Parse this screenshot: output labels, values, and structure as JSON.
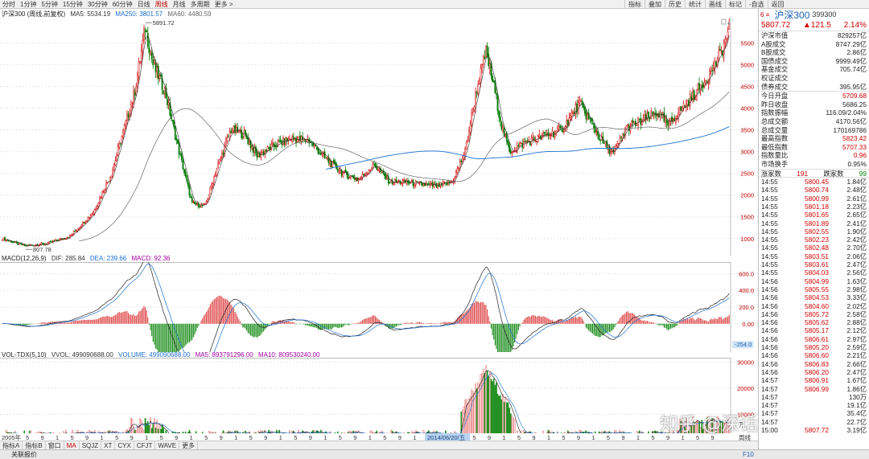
{
  "toolbar": {
    "periods": [
      "分时",
      "1分钟",
      "5分钟",
      "15分钟",
      "30分钟",
      "60分钟",
      "日线",
      "周线",
      "月线",
      "多周期",
      "更多 >"
    ],
    "active_period": 7,
    "tools": [
      "指标",
      "叠加",
      "历史",
      "统计",
      "画线",
      "标记",
      "-自选",
      "返回"
    ]
  },
  "main_panel": {
    "title": "沪深300 (周线,前复权)",
    "ma5": "MA5: 5534.19",
    "ma250": "MA250: 3801.57",
    "ma60": "MA60: 4480.59",
    "high_marker": "5891.72",
    "low_marker": "807.78",
    "y_ticks": [
      "5500",
      "5000",
      "4500",
      "4000",
      "3500",
      "3000",
      "2500",
      "2000",
      "1500",
      "1000"
    ],
    "colors": {
      "up": "#d40000",
      "down": "#007a00",
      "ma5": "#444444",
      "ma250": "#1b6fd0",
      "ma60": "#555555"
    }
  },
  "macd_panel": {
    "title": "MACD(12,26,9)",
    "dif": "DIF: 285.84",
    "dea": "DEA: 239.66",
    "macd": "MACD: 92.36",
    "y_ticks": [
      "600.0",
      "400.0",
      "200.0",
      "0.00"
    ],
    "tag": "-254.0"
  },
  "vol_panel": {
    "title": "VOL-TDX(5,10)",
    "vvol": "VVOL: 499090688.00",
    "volume": "VOLUME: 499090688.00",
    "ma5": "MA5: 893791296.00",
    "ma10": "MA10: 809530240.00",
    "y_ticks": [
      "30000",
      "20000",
      "10000"
    ],
    "unit_label": "万",
    "tag": "1.00"
  },
  "x_axis": {
    "start_label": "2005年",
    "cursor_label": "2014/06/20/五",
    "right_label": "周线",
    "month_digits": [
      "5",
      "9",
      "1",
      "5",
      "9",
      "1",
      "5",
      "9",
      "1",
      "5",
      "9",
      "1",
      "5",
      "9",
      "1",
      "5",
      "9",
      "1",
      "5",
      "9",
      "1",
      "5",
      "9",
      "1",
      "5",
      "9",
      "1",
      "5",
      "9",
      "1",
      "5",
      "9",
      "1",
      "5",
      "9",
      "1",
      "5",
      "9",
      "1",
      "5",
      "9",
      "1",
      "5",
      "9",
      "1",
      "5",
      "9"
    ]
  },
  "bottom_tabs": [
    "指标A",
    "指标B",
    "窗口",
    "MA",
    "SQJZ",
    "XT",
    "CYX",
    "CFJT",
    "WAVE",
    "更多"
  ],
  "active_bottom_tab": 3,
  "status": {
    "label": "关联报价",
    "f10": "F10"
  },
  "right_panel": {
    "icons_label": "6 ≡",
    "name": "沪深300",
    "code": "399300",
    "price": "5807.72",
    "change": "▲121.5",
    "change_pct": "2.14%",
    "stats_a": [
      {
        "k": "沪深市值",
        "v": "829257亿",
        "c": ""
      },
      {
        "k": "A股成交",
        "v": "8747.29亿",
        "c": ""
      },
      {
        "k": "B股成交",
        "v": "2.86亿",
        "c": ""
      },
      {
        "k": "国债成交",
        "v": "9999.49亿",
        "c": ""
      },
      {
        "k": "基金成交",
        "v": "705.74亿",
        "c": ""
      },
      {
        "k": "权证成交",
        "v": "",
        "c": ""
      },
      {
        "k": "债券成交",
        "v": "395.95亿",
        "c": ""
      }
    ],
    "stats_b": [
      {
        "k": "今日开盘",
        "v": "5709.68",
        "c": "red"
      },
      {
        "k": "昨日收盘",
        "v": "5686.25",
        "c": ""
      },
      {
        "k": "指数振幅",
        "v": "116.09/2.04%",
        "c": ""
      },
      {
        "k": "总成交额",
        "v": "4170.56亿",
        "c": ""
      },
      {
        "k": "总成交量",
        "v": "170169786",
        "c": ""
      },
      {
        "k": "最高指数",
        "v": "5823.42",
        "c": "red"
      },
      {
        "k": "最低指数",
        "v": "5707.33",
        "c": "red"
      },
      {
        "k": "指数量比",
        "v": "0.96",
        "c": "red"
      },
      {
        "k": "市场换手",
        "v": "0.95%",
        "c": ""
      }
    ],
    "breadth": {
      "up_label": "涨家数",
      "up": "191",
      "down_label": "跌家数",
      "down": "99"
    },
    "ticks": [
      [
        "14:55",
        "5800.45",
        "1.84亿"
      ],
      [
        "14:55",
        "5800.74",
        "2.48亿"
      ],
      [
        "14:55",
        "5800.99",
        "2.61亿"
      ],
      [
        "14:55",
        "5801.18",
        "2.23亿"
      ],
      [
        "14:55",
        "5801.65",
        "2.65亿"
      ],
      [
        "14:55",
        "5801.89",
        "2.41亿"
      ],
      [
        "14:55",
        "5802.55",
        "1.90亿"
      ],
      [
        "14:55",
        "5802.23",
        "2.42亿"
      ],
      [
        "14:55",
        "5802.48",
        "2.70亿"
      ],
      [
        "14:55",
        "5803.51",
        "2.06亿"
      ],
      [
        "14:55",
        "5803.61",
        "2.47亿"
      ],
      [
        "14:55",
        "5804.03",
        "2.56亿"
      ],
      [
        "14:56",
        "5804.99",
        "1.63亿"
      ],
      [
        "14:56",
        "5805.55",
        "2.98亿"
      ],
      [
        "14:56",
        "5804.53",
        "3.33亿"
      ],
      [
        "14:56",
        "5804.60",
        "2.02亿"
      ],
      [
        "14:56",
        "5805.72",
        "2.58亿"
      ],
      [
        "14:56",
        "5805.62",
        "2.88亿"
      ],
      [
        "14:56",
        "5805.17",
        "2.12亿"
      ],
      [
        "14:56",
        "5806.61",
        "2.97亿"
      ],
      [
        "14:56",
        "5805.20",
        "2.59亿"
      ],
      [
        "14:56",
        "5806.60",
        "2.21亿"
      ],
      [
        "14:56",
        "5806.83",
        "2.66亿"
      ],
      [
        "14:56",
        "5806.20",
        "2.47亿"
      ],
      [
        "14:57",
        "5806.91",
        "1.67亿"
      ],
      [
        "14:57",
        "5806.99",
        "1.86亿"
      ],
      [
        "14:57",
        "",
        "130万"
      ],
      [
        "14:57",
        "",
        "19.1亿"
      ],
      [
        "14:57",
        "",
        "35.4亿"
      ],
      [
        "14:57",
        "",
        "22.7亿"
      ],
      [
        "15:00",
        "5807.72",
        "3.19亿"
      ]
    ],
    "tabs": [
      "笔",
      "价",
      "细",
      "势",
      "联",
      "值",
      "主",
      "筹"
    ]
  },
  "watermark": "知乎 @深话股经"
}
